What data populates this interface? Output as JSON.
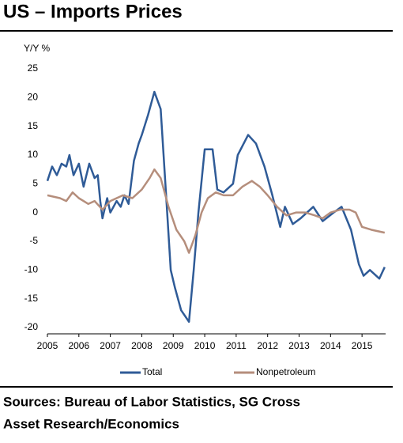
{
  "chart_data": {
    "type": "line",
    "title": "US – Imports Prices",
    "y_label": "Y/Y %",
    "source": [
      "Sources: Bureau of Labor Statistics, SG Cross",
      "Asset Research/Economics"
    ],
    "xlim": [
      2005,
      2015.75
    ],
    "xticks": [
      2005,
      2006,
      2007,
      2008,
      2009,
      2010,
      2011,
      2012,
      2013,
      2014,
      2015
    ],
    "ylim": [
      -20,
      25
    ],
    "yticks": [
      -20,
      -15,
      -10,
      -5,
      0,
      5,
      10,
      15,
      20,
      25
    ],
    "grid": false,
    "legend": "bottom",
    "series": [
      {
        "name": "Total",
        "color": "#2f5b97",
        "x": [
          2005,
          2005.15,
          2005.3,
          2005.45,
          2005.6,
          2005.7,
          2005.83,
          2006,
          2006.15,
          2006.33,
          2006.5,
          2006.6,
          2006.68,
          2006.75,
          2006.9,
          2007,
          2007.2,
          2007.33,
          2007.45,
          2007.58,
          2007.75,
          2007.9,
          2008,
          2008.2,
          2008.4,
          2008.6,
          2008.75,
          2008.92,
          2009.05,
          2009.25,
          2009.5,
          2009.65,
          2009.8,
          2010,
          2010.25,
          2010.4,
          2010.6,
          2010.9,
          2011.05,
          2011.38,
          2011.63,
          2011.9,
          2012.15,
          2012.4,
          2012.55,
          2012.8,
          2013.05,
          2013.45,
          2013.75,
          2014.1,
          2014.35,
          2014.65,
          2014.9,
          2015.05,
          2015.25,
          2015.55,
          2015.72
        ],
        "values": [
          5.5,
          8,
          6.5,
          8.5,
          8,
          10,
          6.5,
          8.5,
          4.5,
          8.5,
          6,
          6.5,
          2,
          -1,
          2.5,
          0,
          2,
          1,
          3,
          1.5,
          9,
          12,
          13.5,
          17,
          21,
          18,
          5,
          -10,
          -13,
          -17,
          -19,
          -10,
          0,
          11,
          11,
          4,
          3.5,
          5,
          10,
          13.5,
          12,
          8,
          3,
          -2.5,
          1,
          -2,
          -1,
          1,
          -1.5,
          0,
          1,
          -3,
          -9,
          -11,
          -10,
          -11.5,
          -9.5
        ]
      },
      {
        "name": "Nonpetroleum",
        "color": "#b58e7c",
        "x": [
          2005,
          2005.4,
          2005.6,
          2005.8,
          2006,
          2006.3,
          2006.5,
          2006.75,
          2007,
          2007.4,
          2007.7,
          2008,
          2008.25,
          2008.4,
          2008.6,
          2008.85,
          2009.1,
          2009.35,
          2009.5,
          2009.7,
          2009.9,
          2010.1,
          2010.35,
          2010.6,
          2010.9,
          2011.2,
          2011.5,
          2011.75,
          2012,
          2012.3,
          2012.6,
          2012.9,
          2013.2,
          2013.5,
          2013.75,
          2014,
          2014.3,
          2014.6,
          2014.8,
          2015,
          2015.3,
          2015.72
        ],
        "values": [
          3,
          2.5,
          2,
          3.5,
          2.5,
          1.5,
          2,
          0.5,
          2,
          3,
          2.5,
          4,
          6,
          7.5,
          6,
          1,
          -3,
          -5,
          -7,
          -4,
          0,
          2.5,
          3.5,
          3,
          3,
          4.5,
          5.5,
          4.5,
          3,
          1,
          -0.5,
          0,
          0,
          -0.5,
          -1,
          0,
          0.5,
          0.5,
          0,
          -2.5,
          -3,
          -3.5
        ]
      }
    ]
  }
}
